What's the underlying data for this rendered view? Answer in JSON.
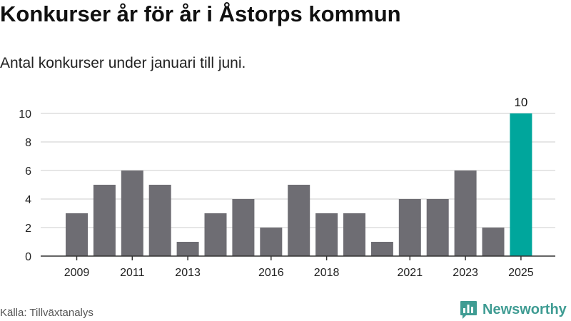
{
  "header": {
    "title": "Konkurser år för år i Åstorps kommun",
    "subtitle": "Antal konkurser under januari till juni."
  },
  "footer": {
    "source": "Källa: Tillväxtanalys",
    "brand": "Newsworthy"
  },
  "colors": {
    "bar": "#6e6d73",
    "highlight": "#00a69c",
    "grid": "#dddddd",
    "axis": "#333333",
    "brand": "#3f9c93"
  },
  "icons": {
    "brand_logo": "bar-chart-logo-icon"
  },
  "chart_data": {
    "type": "bar",
    "categories": [
      "2009",
      "2010",
      "2011",
      "2012",
      "2013",
      "2014",
      "2015",
      "2016",
      "2017",
      "2018",
      "2019",
      "2020",
      "2021",
      "2022",
      "2023",
      "2024",
      "2025"
    ],
    "values": [
      3,
      5,
      6,
      5,
      1,
      3,
      4,
      2,
      5,
      3,
      3,
      1,
      4,
      4,
      6,
      2,
      10
    ],
    "x_tick_labels": [
      "2009",
      "2011",
      "2013",
      "2016",
      "2018",
      "2021",
      "2023",
      "2025"
    ],
    "y_ticks": [
      0,
      2,
      4,
      6,
      8,
      10
    ],
    "ylim": [
      0,
      10
    ],
    "highlight_category": "2025",
    "data_labels": [
      {
        "category": "2025",
        "value": "10"
      }
    ],
    "title": "Konkurser år för år i Åstorps kommun",
    "subtitle": "Antal konkurser under januari till juni.",
    "xlabel": "",
    "ylabel": "",
    "grid": true,
    "legend": "none"
  }
}
